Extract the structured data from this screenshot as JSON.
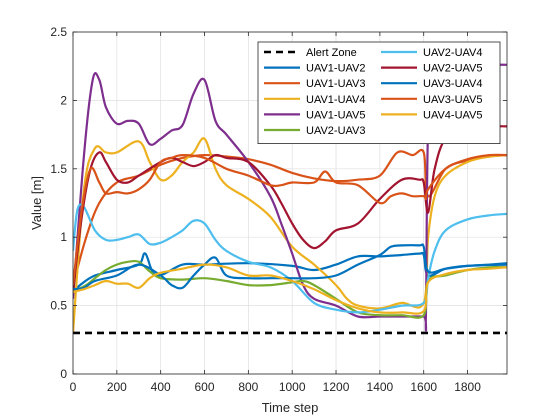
{
  "chart_data": {
    "type": "line",
    "xlabel": "Time step",
    "ylabel": "Value [m]",
    "xlim": [
      0,
      1980
    ],
    "ylim": [
      0,
      2.5
    ],
    "xticks": [
      0,
      200,
      400,
      600,
      800,
      1000,
      1200,
      1400,
      1600,
      1800
    ],
    "yticks": [
      0,
      0.5,
      1,
      1.5,
      2,
      2.5
    ],
    "grid": true,
    "legend_position": "top-right",
    "legend_columns": 2,
    "series": [
      {
        "name": "Alert Zone",
        "color": "#000000",
        "dashed": true,
        "x": [
          0,
          1980
        ],
        "y": [
          0.3,
          0.3
        ]
      },
      {
        "name": "UAV1-UAV2",
        "color": "#0072BD",
        "x": [
          0,
          40,
          100,
          200,
          300,
          330,
          380,
          500,
          600,
          800,
          1000,
          1100,
          1200,
          1300,
          1400,
          1500,
          1580,
          1600,
          1620,
          1700,
          1800,
          1980
        ],
        "y": [
          0.6,
          0.66,
          0.72,
          0.76,
          0.8,
          0.88,
          0.72,
          0.8,
          0.8,
          0.81,
          0.79,
          0.76,
          0.8,
          0.86,
          0.86,
          0.87,
          0.88,
          0.87,
          0.72,
          0.77,
          0.79,
          0.8
        ]
      },
      {
        "name": "UAV1-UAV3",
        "color": "#D95319",
        "x": [
          0,
          60,
          120,
          200,
          300,
          400,
          500,
          600,
          700,
          800,
          900,
          1000,
          1100,
          1200,
          1300,
          1400,
          1480,
          1550,
          1600,
          1620,
          1700,
          1800,
          1900,
          1980
        ],
        "y": [
          0.65,
          1.0,
          1.25,
          1.4,
          1.45,
          1.53,
          1.58,
          1.6,
          1.59,
          1.57,
          1.53,
          1.47,
          1.43,
          1.41,
          1.42,
          1.45,
          1.62,
          1.6,
          1.62,
          1.3,
          1.5,
          1.56,
          1.59,
          1.6
        ]
      },
      {
        "name": "UAV1-UAV4",
        "color": "#EDB120",
        "x": [
          0,
          50,
          100,
          150,
          200,
          300,
          350,
          400,
          450,
          500,
          550,
          600,
          650,
          700,
          800,
          900,
          1000,
          1100,
          1200,
          1250,
          1300,
          1400,
          1500,
          1600,
          1620,
          1650,
          1700,
          1800,
          1900,
          1980
        ],
        "y": [
          0.3,
          1.35,
          1.65,
          1.62,
          1.62,
          1.7,
          1.55,
          1.42,
          1.45,
          1.55,
          1.62,
          1.72,
          1.5,
          1.38,
          1.28,
          1.15,
          0.93,
          0.8,
          0.65,
          0.55,
          0.5,
          0.48,
          0.52,
          0.52,
          1.0,
          1.3,
          1.45,
          1.55,
          1.59,
          1.6
        ]
      },
      {
        "name": "UAV1-UAV5",
        "color": "#7E2F8E",
        "x": [
          0,
          50,
          90,
          120,
          150,
          200,
          250,
          300,
          350,
          400,
          450,
          500,
          550,
          600,
          650,
          700,
          800,
          900,
          950,
          1000,
          1050,
          1100,
          1200,
          1300,
          1400,
          1500,
          1600,
          1610,
          1620,
          1650,
          1700,
          1800,
          1900,
          1980
        ],
        "y": [
          0.55,
          1.6,
          2.15,
          2.15,
          1.95,
          1.83,
          1.85,
          1.83,
          1.68,
          1.72,
          1.78,
          1.82,
          2.05,
          2.15,
          1.85,
          1.75,
          1.55,
          1.3,
          1.1,
          0.88,
          0.65,
          0.55,
          0.5,
          0.42,
          0.42,
          0.42,
          0.42,
          0.42,
          1.8,
          2.22,
          2.25,
          2.25,
          2.26,
          2.26
        ]
      },
      {
        "name": "UAV2-UAV3",
        "color": "#77AC30",
        "x": [
          0,
          60,
          100,
          150,
          200,
          250,
          300,
          350,
          400,
          500,
          600,
          700,
          800,
          900,
          1000,
          1050,
          1100,
          1200,
          1300,
          1400,
          1500,
          1600,
          1620,
          1700,
          1800,
          1900,
          1980
        ],
        "y": [
          0.6,
          0.65,
          0.7,
          0.76,
          0.8,
          0.82,
          0.82,
          0.75,
          0.7,
          0.69,
          0.7,
          0.68,
          0.65,
          0.65,
          0.67,
          0.68,
          0.65,
          0.55,
          0.45,
          0.43,
          0.43,
          0.43,
          0.68,
          0.72,
          0.76,
          0.78,
          0.78
        ]
      },
      {
        "name": "UAV2-UAV4",
        "color": "#4DBEEE",
        "x": [
          0,
          20,
          50,
          100,
          150,
          200,
          250,
          300,
          350,
          400,
          450,
          500,
          550,
          600,
          650,
          700,
          800,
          900,
          1000,
          1100,
          1200,
          1300,
          1400,
          1500,
          1600,
          1620,
          1650,
          1700,
          1800,
          1900,
          1980
        ],
        "y": [
          0.9,
          1.2,
          1.22,
          1.05,
          0.98,
          0.98,
          1.0,
          1.02,
          0.95,
          0.96,
          1.0,
          1.05,
          1.12,
          1.1,
          0.98,
          0.9,
          0.82,
          0.78,
          0.68,
          0.52,
          0.47,
          0.45,
          0.47,
          0.5,
          0.52,
          0.7,
          0.9,
          1.05,
          1.13,
          1.16,
          1.17
        ]
      },
      {
        "name": "UAV2-UAV5",
        "color": "#A2142F",
        "x": [
          0,
          40,
          80,
          120,
          150,
          200,
          250,
          300,
          400,
          450,
          500,
          550,
          600,
          650,
          700,
          800,
          900,
          950,
          1000,
          1050,
          1100,
          1150,
          1200,
          1300,
          1400,
          1500,
          1580,
          1600,
          1620,
          1650,
          1700,
          1800,
          1900,
          1980
        ],
        "y": [
          0.6,
          1.15,
          1.5,
          1.62,
          1.55,
          1.42,
          1.4,
          1.45,
          1.55,
          1.58,
          1.55,
          1.52,
          1.55,
          1.6,
          1.58,
          1.55,
          1.38,
          1.25,
          1.1,
          0.98,
          0.92,
          0.97,
          1.05,
          1.1,
          1.28,
          1.42,
          1.42,
          1.4,
          1.18,
          1.5,
          1.72,
          1.79,
          1.81,
          1.81
        ]
      },
      {
        "name": "UAV3-UAV4",
        "color": "#0072BD",
        "x": [
          0,
          50,
          100,
          200,
          300,
          400,
          450,
          500,
          550,
          600,
          650,
          700,
          800,
          900,
          1000,
          1100,
          1200,
          1300,
          1400,
          1450,
          1500,
          1580,
          1600,
          1620,
          1700,
          1800,
          1900,
          1980
        ],
        "y": [
          0.62,
          0.63,
          0.68,
          0.72,
          0.8,
          0.72,
          0.65,
          0.63,
          0.72,
          0.8,
          0.85,
          0.72,
          0.7,
          0.7,
          0.7,
          0.7,
          0.72,
          0.8,
          0.87,
          0.93,
          0.94,
          0.94,
          0.93,
          0.75,
          0.77,
          0.79,
          0.8,
          0.81
        ]
      },
      {
        "name": "UAV3-UAV5",
        "color": "#D95319",
        "x": [
          0,
          40,
          80,
          120,
          150,
          200,
          250,
          300,
          350,
          400,
          450,
          500,
          600,
          700,
          800,
          900,
          950,
          1000,
          1100,
          1150,
          1200,
          1300,
          1400,
          1450,
          1500,
          1550,
          1600,
          1610,
          1620,
          1700,
          1800,
          1900,
          1980
        ],
        "y": [
          0.65,
          1.2,
          1.5,
          1.4,
          1.32,
          1.33,
          1.32,
          1.35,
          1.42,
          1.55,
          1.58,
          1.6,
          1.58,
          1.5,
          1.45,
          1.38,
          1.38,
          1.4,
          1.4,
          1.48,
          1.4,
          1.38,
          1.25,
          1.3,
          1.32,
          1.3,
          1.3,
          1.28,
          1.35,
          1.5,
          1.57,
          1.6,
          1.6
        ]
      },
      {
        "name": "UAV4-UAV5",
        "color": "#EDB120",
        "x": [
          0,
          50,
          100,
          150,
          200,
          250,
          300,
          350,
          400,
          500,
          600,
          700,
          800,
          900,
          1000,
          1100,
          1200,
          1300,
          1400,
          1500,
          1600,
          1620,
          1700,
          1800,
          1900,
          1980
        ],
        "y": [
          0.6,
          0.62,
          0.65,
          0.68,
          0.66,
          0.66,
          0.63,
          0.7,
          0.74,
          0.77,
          0.8,
          0.78,
          0.72,
          0.72,
          0.68,
          0.62,
          0.54,
          0.48,
          0.45,
          0.45,
          0.46,
          0.67,
          0.73,
          0.76,
          0.77,
          0.78
        ]
      }
    ]
  }
}
